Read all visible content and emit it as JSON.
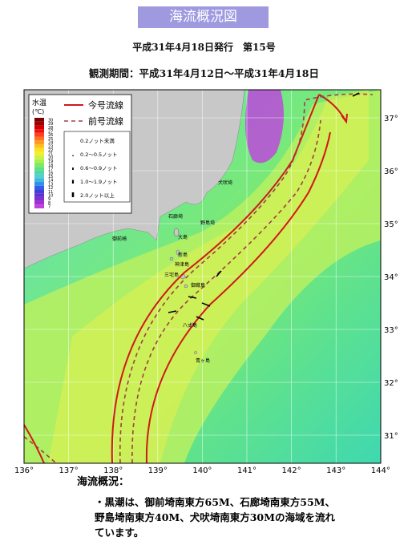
{
  "header": {
    "title": "海流概況図",
    "issue": "平成31年4月18日発行　第15号",
    "period": "観測期間：平成31年4月12日〜平成31年4月18日"
  },
  "map": {
    "legend": {
      "temp_title": "水温",
      "temp_unit": "(℃)",
      "temp_labels": [
        "30",
        "29",
        "28",
        "27",
        "26",
        "25",
        "24",
        "23",
        "22",
        "21",
        "20",
        "19",
        "18",
        "17",
        "16",
        "15",
        "14",
        "13",
        "12",
        "11",
        "10",
        "9",
        "8",
        "7"
      ],
      "current_this": "今号流線",
      "current_prev": "前号流線",
      "speed_labels": [
        "0.2ノット未満",
        "0.2〜0.5ノット",
        "0.6〜0.9ノット",
        "1.0〜1.9ノット",
        "2.0ノット以上"
      ]
    },
    "place_labels": [
      "犬吠埼",
      "野島埼",
      "石廊埼",
      "御前崎",
      "大島",
      "新島",
      "神津島",
      "三宅島",
      "御蔵島",
      "八丈島",
      "青ヶ島"
    ],
    "lon_labels": [
      "136°",
      "137°",
      "138°",
      "139°",
      "140°",
      "141°",
      "142°",
      "143°",
      "144°"
    ],
    "lat_labels": [
      "37°",
      "36°",
      "35°",
      "34°",
      "33°",
      "32°",
      "31°"
    ]
  },
  "summary": {
    "heading": "海流概況：",
    "items": [
      "黒潮は、御前埼南東方65M、石廊埼南東方55M、野島埼南東方40M、犬吠埼南東方30Mの海域を流れています。"
    ]
  }
}
